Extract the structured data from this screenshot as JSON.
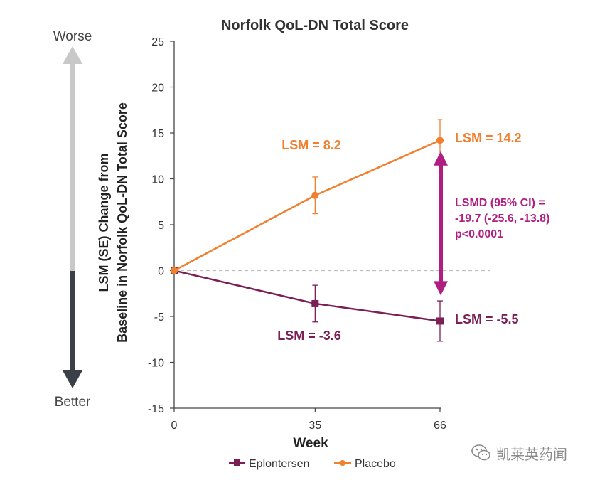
{
  "chart_data": {
    "type": "line",
    "title": "Norfolk QoL-DN Total Score",
    "xlabel": "Week",
    "ylabel_line1": "LSM (SE) Change from",
    "ylabel_line2": "Baseline in Norfolk QoL-DN Total Score",
    "x": [
      0,
      35,
      66
    ],
    "x_tick_labels": [
      "0",
      "35",
      "66"
    ],
    "xlim": [
      0,
      70
    ],
    "ylim": [
      -15,
      25
    ],
    "y_ticks": [
      25,
      20,
      15,
      10,
      5,
      0,
      -5,
      -10,
      -15
    ],
    "y_tick_labels": [
      "25",
      "20",
      "15",
      "10",
      "5",
      "0",
      "-5",
      "-10",
      "-15"
    ],
    "grid": false,
    "legend_position": "bottom",
    "series": [
      {
        "name": "Eplontersen",
        "color": "#7b1f55",
        "marker": "square",
        "values": [
          0,
          -3.6,
          -5.5
        ],
        "error": [
          0,
          2.0,
          2.2
        ],
        "labels": [
          "",
          "LSM = -3.6",
          "LSM = -5.5"
        ]
      },
      {
        "name": "Placebo",
        "color": "#f07f2e",
        "marker": "circle",
        "values": [
          0,
          8.2,
          14.2
        ],
        "error": [
          0,
          2.0,
          2.3
        ],
        "labels": [
          "",
          "LSM = 8.2",
          "LSM = 14.2"
        ]
      }
    ],
    "reference_line": 0,
    "difference": {
      "color": "#b01e82",
      "lines": [
        "LSMD (95% CI) =",
        "-19.7 (-25.6, -13.8)",
        "p<0.0001"
      ]
    },
    "direction_arrow": {
      "top_label": "Worse",
      "bottom_label": "Better",
      "up_color": "#c8c8c8",
      "down_color": "#3a3f48"
    }
  },
  "watermark": {
    "text": "凯莱英药闻",
    "icon": "wechat-icon"
  }
}
